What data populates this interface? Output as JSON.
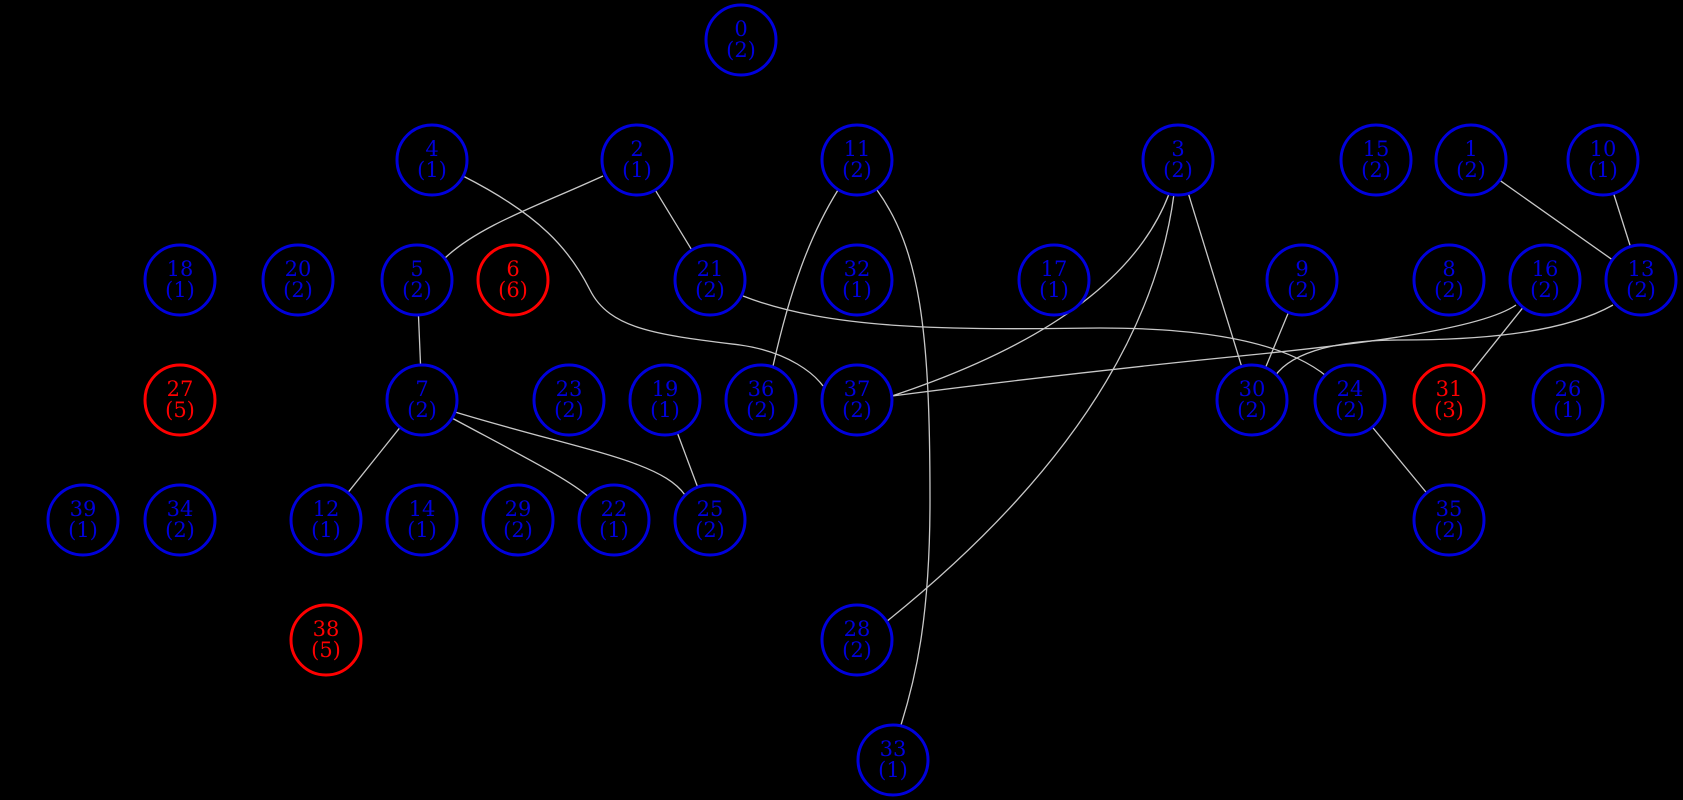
{
  "colors": {
    "background": "#000000",
    "edge": "#c8c8c8",
    "normal": "#0000dd",
    "highlight": "#ff0000"
  },
  "nodes": [
    {
      "id": "0",
      "count": "(2)",
      "status": "normal"
    },
    {
      "id": "4",
      "count": "(1)",
      "status": "normal"
    },
    {
      "id": "2",
      "count": "(1)",
      "status": "normal"
    },
    {
      "id": "11",
      "count": "(2)",
      "status": "normal"
    },
    {
      "id": "3",
      "count": "(2)",
      "status": "normal"
    },
    {
      "id": "15",
      "count": "(2)",
      "status": "normal"
    },
    {
      "id": "1",
      "count": "(2)",
      "status": "normal"
    },
    {
      "id": "10",
      "count": "(1)",
      "status": "normal"
    },
    {
      "id": "18",
      "count": "(1)",
      "status": "normal"
    },
    {
      "id": "20",
      "count": "(2)",
      "status": "normal"
    },
    {
      "id": "5",
      "count": "(2)",
      "status": "normal"
    },
    {
      "id": "6",
      "count": "(6)",
      "status": "highlight"
    },
    {
      "id": "21",
      "count": "(2)",
      "status": "normal"
    },
    {
      "id": "32",
      "count": "(1)",
      "status": "normal"
    },
    {
      "id": "17",
      "count": "(1)",
      "status": "normal"
    },
    {
      "id": "9",
      "count": "(2)",
      "status": "normal"
    },
    {
      "id": "8",
      "count": "(2)",
      "status": "normal"
    },
    {
      "id": "16",
      "count": "(2)",
      "status": "normal"
    },
    {
      "id": "13",
      "count": "(2)",
      "status": "normal"
    },
    {
      "id": "27",
      "count": "(5)",
      "status": "highlight"
    },
    {
      "id": "7",
      "count": "(2)",
      "status": "normal"
    },
    {
      "id": "23",
      "count": "(2)",
      "status": "normal"
    },
    {
      "id": "19",
      "count": "(1)",
      "status": "normal"
    },
    {
      "id": "36",
      "count": "(2)",
      "status": "normal"
    },
    {
      "id": "37",
      "count": "(2)",
      "status": "normal"
    },
    {
      "id": "30",
      "count": "(2)",
      "status": "normal"
    },
    {
      "id": "24",
      "count": "(2)",
      "status": "normal"
    },
    {
      "id": "31",
      "count": "(3)",
      "status": "highlight"
    },
    {
      "id": "26",
      "count": "(1)",
      "status": "normal"
    },
    {
      "id": "39",
      "count": "(1)",
      "status": "normal"
    },
    {
      "id": "34",
      "count": "(2)",
      "status": "normal"
    },
    {
      "id": "12",
      "count": "(1)",
      "status": "normal"
    },
    {
      "id": "14",
      "count": "(1)",
      "status": "normal"
    },
    {
      "id": "29",
      "count": "(2)",
      "status": "normal"
    },
    {
      "id": "22",
      "count": "(1)",
      "status": "normal"
    },
    {
      "id": "25",
      "count": "(2)",
      "status": "normal"
    },
    {
      "id": "35",
      "count": "(2)",
      "status": "normal"
    },
    {
      "id": "38",
      "count": "(5)",
      "status": "highlight"
    },
    {
      "id": "28",
      "count": "(2)",
      "status": "normal"
    },
    {
      "id": "33",
      "count": "(1)",
      "status": "normal"
    }
  ],
  "edges": [
    [
      "4",
      "37"
    ],
    [
      "2",
      "5"
    ],
    [
      "2",
      "21"
    ],
    [
      "11",
      "36"
    ],
    [
      "11",
      "33"
    ],
    [
      "3",
      "37"
    ],
    [
      "3",
      "28"
    ],
    [
      "3",
      "30"
    ],
    [
      "1",
      "13"
    ],
    [
      "10",
      "13"
    ],
    [
      "5",
      "7"
    ],
    [
      "21",
      "24"
    ],
    [
      "9",
      "30"
    ],
    [
      "16",
      "37"
    ],
    [
      "16",
      "31"
    ],
    [
      "13",
      "30"
    ],
    [
      "7",
      "12"
    ],
    [
      "7",
      "22"
    ],
    [
      "7",
      "25"
    ],
    [
      "19",
      "25"
    ],
    [
      "24",
      "35"
    ]
  ]
}
